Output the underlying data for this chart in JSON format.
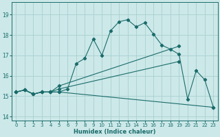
{
  "xlabel": "Humidex (Indice chaleur)",
  "background_color": "#cce8e8",
  "grid_color": "#aacfcf",
  "line_color": "#1a6b6b",
  "xlim": [
    -0.5,
    23.5
  ],
  "ylim": [
    13.8,
    19.6
  ],
  "yticks": [
    14,
    15,
    16,
    17,
    18,
    19
  ],
  "xticks": [
    0,
    1,
    2,
    3,
    4,
    5,
    6,
    7,
    8,
    9,
    10,
    11,
    12,
    13,
    14,
    15,
    16,
    17,
    18,
    19,
    20,
    21,
    22,
    23
  ],
  "series": [
    {
      "x": [
        0,
        1,
        2,
        3,
        4,
        5,
        6,
        7,
        8,
        9,
        10,
        11,
        12,
        13,
        14,
        15,
        16,
        17,
        18,
        19,
        20,
        21,
        22,
        23
      ],
      "y": [
        15.2,
        15.3,
        15.1,
        15.2,
        15.2,
        15.2,
        15.35,
        16.6,
        16.85,
        17.8,
        17.0,
        18.2,
        18.65,
        18.75,
        18.4,
        18.6,
        18.05,
        17.5,
        17.3,
        17.05,
        14.85,
        16.25,
        15.8,
        14.45
      ],
      "markers_at": [
        0,
        1,
        2,
        3,
        4,
        5,
        6,
        7,
        8,
        9,
        10,
        11,
        12,
        13,
        14,
        15,
        16,
        17,
        18,
        19,
        20,
        21,
        22,
        23
      ]
    },
    {
      "x": [
        0,
        1,
        2,
        3,
        4,
        5,
        19
      ],
      "y": [
        15.2,
        15.3,
        15.1,
        15.2,
        15.2,
        15.5,
        17.45
      ],
      "markers_at": [
        0,
        1,
        2,
        3,
        4,
        5,
        19
      ]
    },
    {
      "x": [
        0,
        1,
        2,
        3,
        4,
        5,
        19
      ],
      "y": [
        15.2,
        15.3,
        15.1,
        15.2,
        15.2,
        15.35,
        16.7
      ],
      "markers_at": [
        0,
        1,
        2,
        3,
        4,
        5,
        19
      ]
    },
    {
      "x": [
        0,
        1,
        2,
        3,
        4,
        5,
        23
      ],
      "y": [
        15.2,
        15.3,
        15.1,
        15.2,
        15.2,
        15.2,
        14.45
      ],
      "markers_at": [
        0,
        1,
        2,
        3,
        4,
        5,
        23
      ]
    }
  ]
}
